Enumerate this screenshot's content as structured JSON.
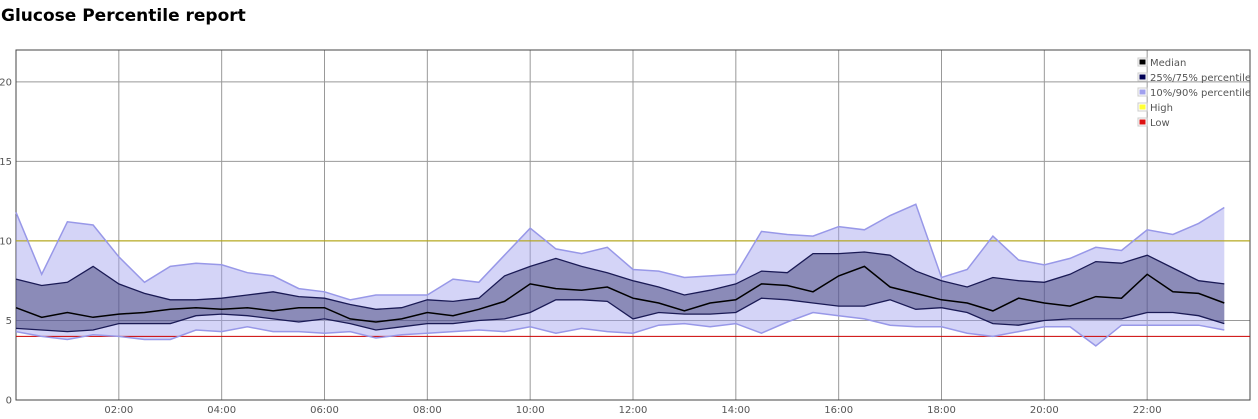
{
  "chart_data": {
    "type": "area",
    "title": "Glucose Percentile report",
    "xlabel": "",
    "ylabel": "",
    "x_unit": "hours",
    "xlim": [
      0,
      24
    ],
    "ylim": [
      0,
      22
    ],
    "x_ticks": [
      {
        "value": 2,
        "label": "02:00"
      },
      {
        "value": 4,
        "label": "04:00"
      },
      {
        "value": 6,
        "label": "06:00"
      },
      {
        "value": 8,
        "label": "08:00"
      },
      {
        "value": 10,
        "label": "10:00"
      },
      {
        "value": 12,
        "label": "12:00"
      },
      {
        "value": 14,
        "label": "14:00"
      },
      {
        "value": 16,
        "label": "16:00"
      },
      {
        "value": 18,
        "label": "18:00"
      },
      {
        "value": 20,
        "label": "20:00"
      },
      {
        "value": 22,
        "label": "22:00"
      }
    ],
    "y_ticks": [
      0,
      5,
      10,
      15,
      20
    ],
    "grid": true,
    "legend_position": "top-right",
    "legend": [
      {
        "label": "Median",
        "color": "#000000"
      },
      {
        "label": "25%/75% percentile",
        "color": "#000055"
      },
      {
        "label": "10%/90% percentile",
        "color": "#a0a0ee"
      },
      {
        "label": "High",
        "color": "#ffff33"
      },
      {
        "label": "Low",
        "color": "#dd1111"
      }
    ],
    "thresholds": {
      "high": 10,
      "low": 4,
      "high_line_color": "#b8a800",
      "low_line_color": "#cc0000"
    },
    "x": [
      0,
      0.5,
      1,
      1.5,
      2,
      2.5,
      3,
      3.5,
      4,
      4.5,
      5,
      5.5,
      6,
      6.5,
      7,
      7.5,
      8,
      8.5,
      9,
      9.5,
      10,
      10.5,
      11,
      11.5,
      12,
      12.5,
      13,
      13.5,
      14,
      14.5,
      15,
      15.5,
      16,
      16.5,
      17,
      17.5,
      18,
      18.5,
      19,
      19.5,
      20,
      20.5,
      21,
      21.5,
      22,
      22.5,
      23,
      23.5
    ],
    "series": [
      {
        "name": "Median",
        "values": [
          5.8,
          5.2,
          5.5,
          5.2,
          5.4,
          5.5,
          5.7,
          5.8,
          5.7,
          5.8,
          5.6,
          5.8,
          5.8,
          5.1,
          4.9,
          5.1,
          5.5,
          5.3,
          5.7,
          6.2,
          7.3,
          7.0,
          6.9,
          7.1,
          6.4,
          6.1,
          5.6,
          6.1,
          6.3,
          7.3,
          7.2,
          6.8,
          7.8,
          8.4,
          7.1,
          6.7,
          6.3,
          6.1,
          5.6,
          6.4,
          6.1,
          5.9,
          6.5,
          6.4,
          7.9,
          6.8,
          6.7,
          6.1
        ]
      },
      {
        "name": "25% percentile",
        "values": [
          4.5,
          4.4,
          4.3,
          4.4,
          4.8,
          4.8,
          4.8,
          5.3,
          5.4,
          5.3,
          5.1,
          4.9,
          5.1,
          4.8,
          4.4,
          4.6,
          4.8,
          4.8,
          5.0,
          5.1,
          5.5,
          6.3,
          6.3,
          6.2,
          5.1,
          5.5,
          5.4,
          5.4,
          5.5,
          6.4,
          6.3,
          6.1,
          5.9,
          5.9,
          6.3,
          5.7,
          5.8,
          5.5,
          4.8,
          4.7,
          5.0,
          5.1,
          5.1,
          5.1,
          5.5,
          5.5,
          5.3,
          4.8
        ]
      },
      {
        "name": "75% percentile",
        "values": [
          7.6,
          7.2,
          7.4,
          8.4,
          7.3,
          6.7,
          6.3,
          6.3,
          6.4,
          6.6,
          6.8,
          6.5,
          6.4,
          6.0,
          5.7,
          5.8,
          6.3,
          6.2,
          6.4,
          7.8,
          8.4,
          8.9,
          8.4,
          8.0,
          7.5,
          7.1,
          6.6,
          6.9,
          7.3,
          8.1,
          8.0,
          9.2,
          9.2,
          9.3,
          9.1,
          8.1,
          7.5,
          7.1,
          7.7,
          7.5,
          7.4,
          7.9,
          8.7,
          8.6,
          9.1,
          8.3,
          7.5,
          7.3
        ]
      },
      {
        "name": "10% percentile",
        "values": [
          4.3,
          4.0,
          3.8,
          4.1,
          4.0,
          3.8,
          3.8,
          4.4,
          4.3,
          4.6,
          4.3,
          4.3,
          4.2,
          4.3,
          3.9,
          4.1,
          4.2,
          4.3,
          4.4,
          4.3,
          4.6,
          4.2,
          4.5,
          4.3,
          4.2,
          4.7,
          4.8,
          4.6,
          4.8,
          4.2,
          4.9,
          5.5,
          5.3,
          5.1,
          4.7,
          4.6,
          4.6,
          4.2,
          4.0,
          4.3,
          4.6,
          4.6,
          3.4,
          4.7,
          4.7,
          4.7,
          4.7,
          4.4
        ]
      },
      {
        "name": "90% percentile",
        "values": [
          11.8,
          7.9,
          11.2,
          11.0,
          9.0,
          7.4,
          8.4,
          8.6,
          8.5,
          8.0,
          7.8,
          7.0,
          6.8,
          6.3,
          6.6,
          6.6,
          6.6,
          7.6,
          7.4,
          9.1,
          10.8,
          9.5,
          9.2,
          9.6,
          8.2,
          8.1,
          7.7,
          7.8,
          7.9,
          10.6,
          10.4,
          10.3,
          10.9,
          10.7,
          11.6,
          12.3,
          7.7,
          8.2,
          10.3,
          8.8,
          8.5,
          8.9,
          9.6,
          9.4,
          10.7,
          10.4,
          11.1,
          12.1
        ]
      }
    ]
  }
}
